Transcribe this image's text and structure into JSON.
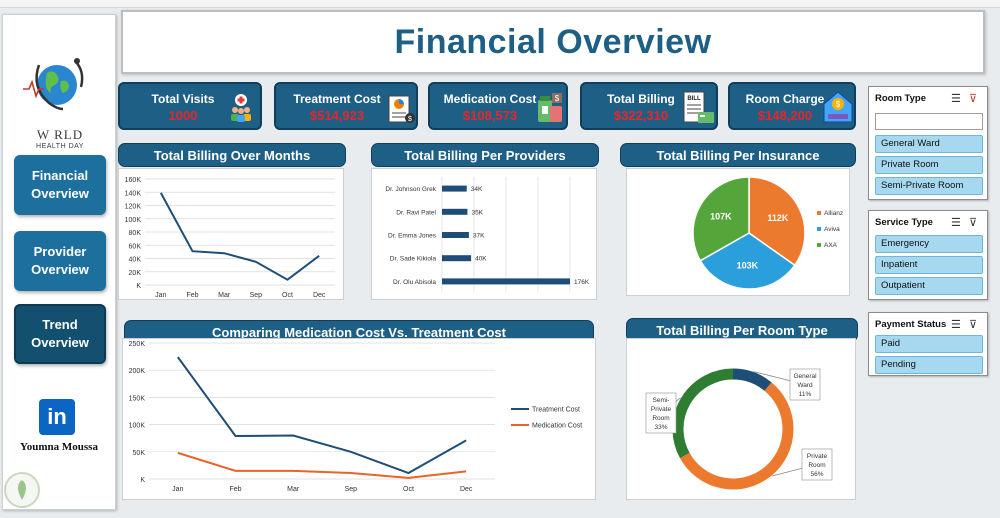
{
  "title": "Financial Overview",
  "sidebar": {
    "logo_line1": "W  RLD",
    "logo_line2": "HEALTH DAY",
    "nav": [
      "Financial Overview",
      "Provider Overview",
      "Trend Overview"
    ],
    "linkedin": "in",
    "author": "Youmna Moussa"
  },
  "kpis": {
    "visits": {
      "label": "Total Visits",
      "value": "1000"
    },
    "treatment": {
      "label": "Treatment Cost",
      "value": "$514,923"
    },
    "medication": {
      "label": "Medication Cost",
      "value": "$108,573"
    },
    "billing": {
      "label": "Total Billing",
      "value": "$322,310",
      "badge": "BILL"
    },
    "room": {
      "label": "Room Charge",
      "value": "$148,200"
    }
  },
  "charts": {
    "months": "Total Billing Over Months",
    "providers": "Total Billing Per Providers",
    "insurance": "Total Billing Per Insurance",
    "medtreat": "Comparing Medication Cost Vs. Treatment Cost",
    "roomtype": "Total Billing Per Room Type"
  },
  "chart_data": [
    {
      "type": "line",
      "title": "Total Billing Over Months",
      "categories": [
        "Jan",
        "Feb",
        "Mar",
        "Sep",
        "Oct",
        "Dec"
      ],
      "values": [
        139000,
        51000,
        48000,
        35000,
        8000,
        44000
      ],
      "ylim": [
        0,
        160000
      ],
      "yticks": [
        "K",
        "20K",
        "40K",
        "60K",
        "80K",
        "100K",
        "120K",
        "140K",
        "160K"
      ],
      "color": "#1e4d78"
    },
    {
      "type": "bar",
      "title": "Total Billing Per Providers",
      "categories": [
        "Dr. Johnson Grek",
        "Dr. Ravi Patel",
        "Dr. Emma Jones",
        "Dr. Sade Kikiola",
        "Dr. Olu Abisola"
      ],
      "values": [
        34000,
        35000,
        37000,
        40000,
        176000
      ],
      "labels": [
        "34K",
        "35K",
        "37K",
        "40K",
        "176K"
      ],
      "xlim": [
        0,
        176000
      ],
      "color": "#1e4d78"
    },
    {
      "type": "pie",
      "title": "Total Billing Per Insurance",
      "categories": [
        "Allianz",
        "Aviva",
        "AXA"
      ],
      "values": [
        112,
        103,
        107
      ],
      "labels": [
        "112K",
        "103K",
        "107K"
      ],
      "colors": [
        "#ec7a2e",
        "#2b9fdc",
        "#55a63a"
      ]
    },
    {
      "type": "line",
      "title": "Comparing Medication Cost Vs. Treatment Cost",
      "categories": [
        "Jan",
        "Feb",
        "Mar",
        "Sep",
        "Oct",
        "Dec"
      ],
      "series": [
        {
          "name": "Treatment Cost",
          "values": [
            224000,
            79000,
            80000,
            50000,
            11000,
            71000
          ],
          "color": "#1e4d78"
        },
        {
          "name": "Medication Cost",
          "values": [
            48000,
            15000,
            15000,
            11000,
            2000,
            14000
          ],
          "color": "#e8642a"
        }
      ],
      "ylim": [
        0,
        250000
      ],
      "yticks": [
        "K",
        "50K",
        "100K",
        "150K",
        "200K",
        "250K"
      ]
    },
    {
      "type": "pie",
      "title": "Total Billing Per Room Type",
      "categories": [
        "General Ward",
        "Private Room",
        "Semi-Private Room"
      ],
      "values": [
        11,
        56,
        33
      ],
      "labels": [
        [
          "General",
          "Ward",
          "11%"
        ],
        [
          "Private",
          "Room",
          "56%"
        ],
        [
          "Semi-",
          "Private",
          "Room",
          "33%"
        ]
      ],
      "colors": [
        "#1e4d78",
        "#ec7a2e",
        "#2e7d32"
      ]
    }
  ],
  "slicers": {
    "room_type": {
      "title": "Room Type",
      "search_value": "",
      "items": [
        "General Ward",
        "Private Room",
        "Semi-Private Room"
      ]
    },
    "service_type": {
      "title": "Service Type",
      "items": [
        "Emergency",
        "Inpatient",
        "Outpatient"
      ]
    },
    "payment_status": {
      "title": "Payment Status",
      "items": [
        "Paid",
        "Pending"
      ]
    }
  }
}
